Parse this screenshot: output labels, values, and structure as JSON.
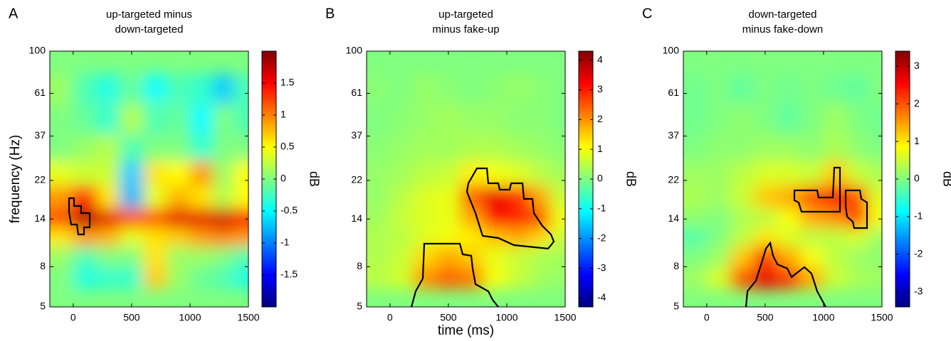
{
  "chart_data": [
    {
      "type": "heatmap",
      "panel_label": "A",
      "title": [
        "up-targeted minus",
        "down-targeted"
      ],
      "ylabel": "frequency (Hz)",
      "colorbar_label": "dB",
      "xlim": [
        -200,
        1500
      ],
      "xticks": [
        0,
        500,
        1000,
        1500
      ],
      "ylim": [
        5,
        100
      ],
      "yticks": [
        5,
        8,
        14,
        22,
        37,
        61,
        100
      ],
      "yscale": "log",
      "clim": [
        -2,
        2
      ],
      "cticks": [
        -1.5,
        -1,
        -0.5,
        0,
        0.5,
        1,
        1.5
      ],
      "colormap": "jet",
      "x": [
        -100,
        100,
        300,
        500,
        700,
        900,
        1100,
        1300,
        1450
      ],
      "y": [
        5.5,
        7,
        9,
        11.5,
        14,
        18,
        24,
        32,
        45,
        65,
        90
      ],
      "z": [
        [
          0,
          -0.5,
          -0.3,
          -0.4,
          0.6,
          0.2,
          -0.2,
          -0.3,
          -0.5
        ],
        [
          0,
          -0.4,
          -0.3,
          -0.3,
          0.7,
          0.1,
          -0.1,
          -0.2,
          -0.4
        ],
        [
          0.1,
          -0.2,
          0,
          0,
          0.6,
          0.1,
          0.1,
          0,
          -0.2
        ],
        [
          0.6,
          0.9,
          0.8,
          0.4,
          0.6,
          0.7,
          0.9,
          1.0,
          0.9
        ],
        [
          1.2,
          1.8,
          1.6,
          1.2,
          1.2,
          1.6,
          1.6,
          1.7,
          1.5
        ],
        [
          0.9,
          1.4,
          0.6,
          -0.8,
          0.4,
          0.8,
          0.6,
          0.2,
          0.5
        ],
        [
          0.4,
          0.3,
          0.3,
          -0.7,
          0.6,
          0.5,
          0.9,
          0.1,
          0.5
        ],
        [
          0,
          0.1,
          0.2,
          -0.2,
          0,
          0,
          -0.3,
          0,
          0
        ],
        [
          0,
          -0.1,
          -0.3,
          0.2,
          -0.2,
          -0.1,
          -0.5,
          0,
          -0.2
        ],
        [
          0.2,
          -0.3,
          0,
          -0.3,
          0.1,
          -0.4,
          -0.2,
          -0.6,
          -0.3
        ],
        [
          0.1,
          -0.2,
          -0.4,
          -0.1,
          -0.5,
          -0.2,
          -0.3,
          -0.7,
          -0.2
        ]
      ]
    },
    {
      "type": "heatmap",
      "panel_label": "B",
      "title": [
        "up-targeted",
        "minus fake-up"
      ],
      "xlabel": "time (ms)",
      "colorbar_label": "dB",
      "xlim": [
        -200,
        1500
      ],
      "xticks": [
        0,
        500,
        1000,
        1500
      ],
      "ylim": [
        5,
        100
      ],
      "yticks": [
        5,
        8,
        14,
        22,
        37,
        61,
        100
      ],
      "yscale": "log",
      "clim": [
        -4.3,
        4.3
      ],
      "cticks": [
        -4,
        -3,
        -2,
        -1,
        0,
        1,
        2,
        3,
        4
      ],
      "colormap": "jet",
      "x": [
        -100,
        100,
        300,
        500,
        700,
        900,
        1100,
        1300,
        1450
      ],
      "y": [
        5.5,
        7,
        9,
        11.5,
        14,
        18,
        24,
        32,
        45,
        65,
        90
      ],
      "z": [
        [
          0.5,
          0.7,
          2.2,
          2.6,
          2.4,
          1.2,
          0.5,
          0.3,
          0.2
        ],
        [
          0.5,
          0.7,
          2.0,
          2.4,
          2.2,
          1.0,
          0.6,
          0.3,
          0.2
        ],
        [
          0.4,
          0.6,
          1.4,
          1.8,
          1.5,
          0.9,
          0.6,
          0.4,
          0.3
        ],
        [
          0.4,
          0.5,
          0.8,
          1.0,
          1.2,
          1.6,
          1.8,
          1.4,
          0.6
        ],
        [
          0.3,
          0.6,
          0.8,
          0.9,
          1.8,
          3.2,
          3.0,
          2.6,
          1.0
        ],
        [
          0.2,
          0.5,
          0.8,
          0.9,
          2.4,
          3.4,
          2.8,
          1.8,
          0.6
        ],
        [
          0.2,
          0.3,
          0.5,
          0.6,
          1.2,
          1.0,
          0.8,
          0.5,
          0.3
        ],
        [
          0.1,
          0.2,
          0.3,
          0.3,
          0.4,
          0.4,
          0.3,
          0.2,
          0.1
        ],
        [
          0,
          0.1,
          0.2,
          0.3,
          0.2,
          0.2,
          0.1,
          0.1,
          0
        ],
        [
          0,
          0.1,
          0.2,
          0.1,
          0.1,
          0.2,
          0.1,
          0,
          0
        ],
        [
          0.1,
          0,
          0.2,
          0.1,
          0,
          0.1,
          0.2,
          0.1,
          0
        ]
      ]
    },
    {
      "type": "heatmap",
      "panel_label": "C",
      "title": [
        "down-targeted",
        "minus fake-down"
      ],
      "colorbar_label": "dB",
      "xlim": [
        -200,
        1500
      ],
      "xticks": [
        0,
        500,
        1000,
        1500
      ],
      "ylim": [
        5,
        100
      ],
      "yticks": [
        5,
        8,
        14,
        22,
        37,
        61,
        100
      ],
      "yscale": "log",
      "clim": [
        -3.4,
        3.4
      ],
      "cticks": [
        -3,
        -2,
        -1,
        0,
        1,
        2,
        3
      ],
      "colormap": "jet",
      "x": [
        -100,
        100,
        300,
        500,
        700,
        900,
        1100,
        1300,
        1450
      ],
      "y": [
        5.5,
        7,
        9,
        11.5,
        14,
        18,
        24,
        32,
        45,
        65,
        90
      ],
      "z": [
        [
          0.3,
          1.0,
          2.4,
          3.2,
          2.6,
          1.6,
          0.6,
          0.4,
          0.3
        ],
        [
          0.2,
          0.6,
          2.0,
          2.7,
          2.2,
          1.4,
          0.5,
          0.3,
          0.2
        ],
        [
          0,
          0.2,
          1.2,
          2.2,
          1.4,
          0.8,
          0.4,
          0.2,
          0.1
        ],
        [
          -0.3,
          0,
          0.4,
          1.0,
          0.6,
          0.4,
          0.4,
          0.6,
          0.2
        ],
        [
          0.1,
          0,
          0.3,
          0.4,
          0.8,
          1.4,
          1.6,
          2.2,
          0.8
        ],
        [
          0.3,
          0.2,
          0.5,
          1.2,
          1.4,
          2.0,
          2.4,
          2.0,
          0.6
        ],
        [
          0.2,
          0.2,
          0.4,
          0.6,
          0.6,
          0.5,
          1.2,
          0.5,
          0.3
        ],
        [
          0,
          0.1,
          0.1,
          0.2,
          0.2,
          0.1,
          0.3,
          0.1,
          0
        ],
        [
          -0.1,
          0,
          0.1,
          0,
          -0.2,
          0,
          0.2,
          0,
          -0.1
        ],
        [
          0,
          -0.2,
          0,
          -0.1,
          0,
          -0.2,
          0,
          -0.1,
          0
        ],
        [
          -0.1,
          0,
          -0.2,
          0,
          -0.1,
          0,
          -0.1,
          -0.2,
          0
        ]
      ]
    }
  ]
}
